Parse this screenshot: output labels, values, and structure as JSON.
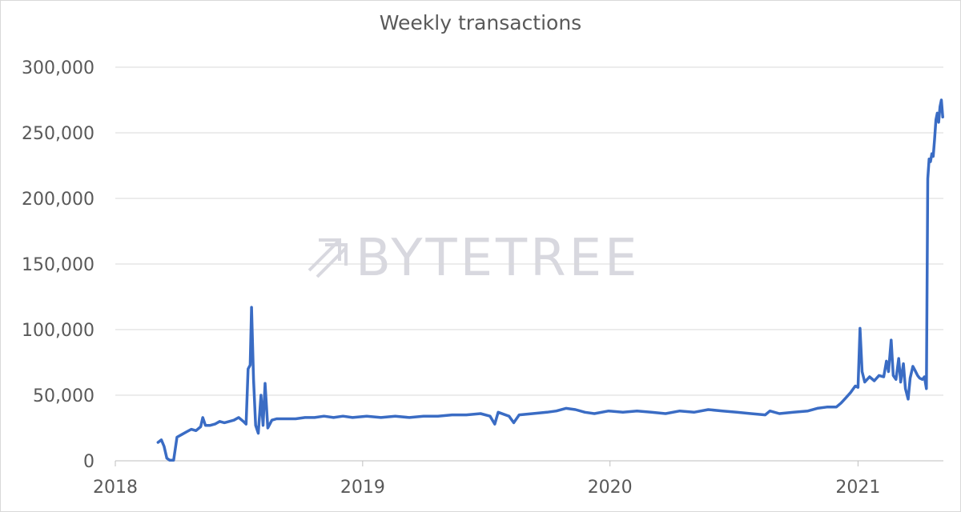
{
  "chart_data": {
    "type": "line",
    "title": "Weekly transactions",
    "xlabel": "",
    "ylabel": "",
    "ylim": [
      0,
      300000
    ],
    "y_ticks": [
      0,
      50000,
      100000,
      150000,
      200000,
      250000,
      300000
    ],
    "y_tick_labels": [
      "0",
      "50,000",
      "100,000",
      "150,000",
      "200,000",
      "250,000",
      "300,000"
    ],
    "x_range": [
      "2018-01-01",
      "2021-05-07"
    ],
    "x_ticks": [
      "2018-01-01",
      "2019-01-01",
      "2020-01-01",
      "2021-01-01"
    ],
    "x_tick_labels": [
      "2018",
      "2019",
      "2020",
      "2021"
    ],
    "grid": "horizontal",
    "legend": "none",
    "line_color": "#3a6cc4",
    "series": [
      {
        "points": [
          [
            "2018-03-05",
            14000
          ],
          [
            "2018-03-10",
            16000
          ],
          [
            "2018-03-14",
            11000
          ],
          [
            "2018-03-18",
            2000
          ],
          [
            "2018-03-22",
            500
          ],
          [
            "2018-03-28",
            500
          ],
          [
            "2018-04-02",
            18000
          ],
          [
            "2018-04-09",
            20000
          ],
          [
            "2018-04-16",
            22000
          ],
          [
            "2018-04-23",
            24000
          ],
          [
            "2018-04-30",
            23000
          ],
          [
            "2018-05-07",
            26000
          ],
          [
            "2018-05-10",
            33000
          ],
          [
            "2018-05-14",
            27000
          ],
          [
            "2018-05-21",
            27000
          ],
          [
            "2018-05-28",
            28000
          ],
          [
            "2018-06-04",
            30000
          ],
          [
            "2018-06-11",
            29000
          ],
          [
            "2018-06-18",
            30000
          ],
          [
            "2018-06-25",
            31000
          ],
          [
            "2018-07-02",
            33000
          ],
          [
            "2018-07-09",
            30000
          ],
          [
            "2018-07-13",
            28000
          ],
          [
            "2018-07-16",
            70000
          ],
          [
            "2018-07-19",
            73000
          ],
          [
            "2018-07-21",
            117000
          ],
          [
            "2018-07-24",
            62000
          ],
          [
            "2018-07-27",
            27000
          ],
          [
            "2018-07-31",
            21000
          ],
          [
            "2018-08-04",
            50000
          ],
          [
            "2018-08-07",
            27000
          ],
          [
            "2018-08-10",
            59000
          ],
          [
            "2018-08-14",
            25000
          ],
          [
            "2018-08-20",
            31000
          ],
          [
            "2018-08-27",
            32000
          ],
          [
            "2018-09-10",
            32000
          ],
          [
            "2018-09-24",
            32000
          ],
          [
            "2018-10-08",
            33000
          ],
          [
            "2018-10-22",
            33000
          ],
          [
            "2018-11-05",
            34000
          ],
          [
            "2018-11-19",
            33000
          ],
          [
            "2018-12-03",
            34000
          ],
          [
            "2018-12-17",
            33000
          ],
          [
            "2019-01-07",
            34000
          ],
          [
            "2019-01-28",
            33000
          ],
          [
            "2019-02-18",
            34000
          ],
          [
            "2019-03-11",
            33000
          ],
          [
            "2019-04-01",
            34000
          ],
          [
            "2019-04-22",
            34000
          ],
          [
            "2019-05-13",
            35000
          ],
          [
            "2019-06-03",
            35000
          ],
          [
            "2019-06-24",
            36000
          ],
          [
            "2019-07-08",
            34000
          ],
          [
            "2019-07-15",
            28000
          ],
          [
            "2019-07-20",
            37000
          ],
          [
            "2019-08-05",
            34000
          ],
          [
            "2019-08-12",
            29000
          ],
          [
            "2019-08-20",
            35000
          ],
          [
            "2019-09-09",
            36000
          ],
          [
            "2019-09-30",
            37000
          ],
          [
            "2019-10-14",
            38000
          ],
          [
            "2019-10-28",
            40000
          ],
          [
            "2019-11-11",
            39000
          ],
          [
            "2019-11-25",
            37000
          ],
          [
            "2019-12-09",
            36000
          ],
          [
            "2019-12-30",
            38000
          ],
          [
            "2020-01-20",
            37000
          ],
          [
            "2020-02-10",
            38000
          ],
          [
            "2020-03-02",
            37000
          ],
          [
            "2020-03-23",
            36000
          ],
          [
            "2020-04-13",
            38000
          ],
          [
            "2020-05-04",
            37000
          ],
          [
            "2020-05-25",
            39000
          ],
          [
            "2020-06-15",
            38000
          ],
          [
            "2020-07-06",
            37000
          ],
          [
            "2020-07-27",
            36000
          ],
          [
            "2020-08-17",
            35000
          ],
          [
            "2020-08-24",
            38000
          ],
          [
            "2020-09-07",
            36000
          ],
          [
            "2020-09-28",
            37000
          ],
          [
            "2020-10-19",
            38000
          ],
          [
            "2020-11-02",
            40000
          ],
          [
            "2020-11-16",
            41000
          ],
          [
            "2020-11-30",
            41000
          ],
          [
            "2020-12-07",
            44000
          ],
          [
            "2020-12-14",
            48000
          ],
          [
            "2020-12-21",
            52000
          ],
          [
            "2020-12-28",
            57000
          ],
          [
            "2021-01-01",
            56000
          ],
          [
            "2021-01-04",
            101000
          ],
          [
            "2021-01-07",
            68000
          ],
          [
            "2021-01-11",
            60000
          ],
          [
            "2021-01-18",
            64000
          ],
          [
            "2021-01-25",
            61000
          ],
          [
            "2021-02-01",
            65000
          ],
          [
            "2021-02-08",
            64000
          ],
          [
            "2021-02-12",
            76000
          ],
          [
            "2021-02-15",
            68000
          ],
          [
            "2021-02-19",
            92000
          ],
          [
            "2021-02-22",
            65000
          ],
          [
            "2021-02-26",
            62000
          ],
          [
            "2021-03-02",
            78000
          ],
          [
            "2021-03-05",
            60000
          ],
          [
            "2021-03-09",
            74000
          ],
          [
            "2021-03-12",
            55000
          ],
          [
            "2021-03-16",
            47000
          ],
          [
            "2021-03-19",
            63000
          ],
          [
            "2021-03-23",
            72000
          ],
          [
            "2021-03-26",
            69000
          ],
          [
            "2021-03-30",
            65000
          ],
          [
            "2021-04-02",
            63000
          ],
          [
            "2021-04-06",
            62000
          ],
          [
            "2021-04-09",
            64000
          ],
          [
            "2021-04-12",
            55000
          ],
          [
            "2021-04-14",
            215000
          ],
          [
            "2021-04-16",
            230000
          ],
          [
            "2021-04-18",
            228000
          ],
          [
            "2021-04-20",
            234000
          ],
          [
            "2021-04-22",
            232000
          ],
          [
            "2021-04-24",
            245000
          ],
          [
            "2021-04-26",
            260000
          ],
          [
            "2021-04-28",
            265000
          ],
          [
            "2021-04-30",
            258000
          ],
          [
            "2021-05-02",
            270000
          ],
          [
            "2021-05-04",
            275000
          ],
          [
            "2021-05-06",
            262000
          ]
        ]
      }
    ]
  },
  "watermark": {
    "text": "BYTETREE"
  }
}
